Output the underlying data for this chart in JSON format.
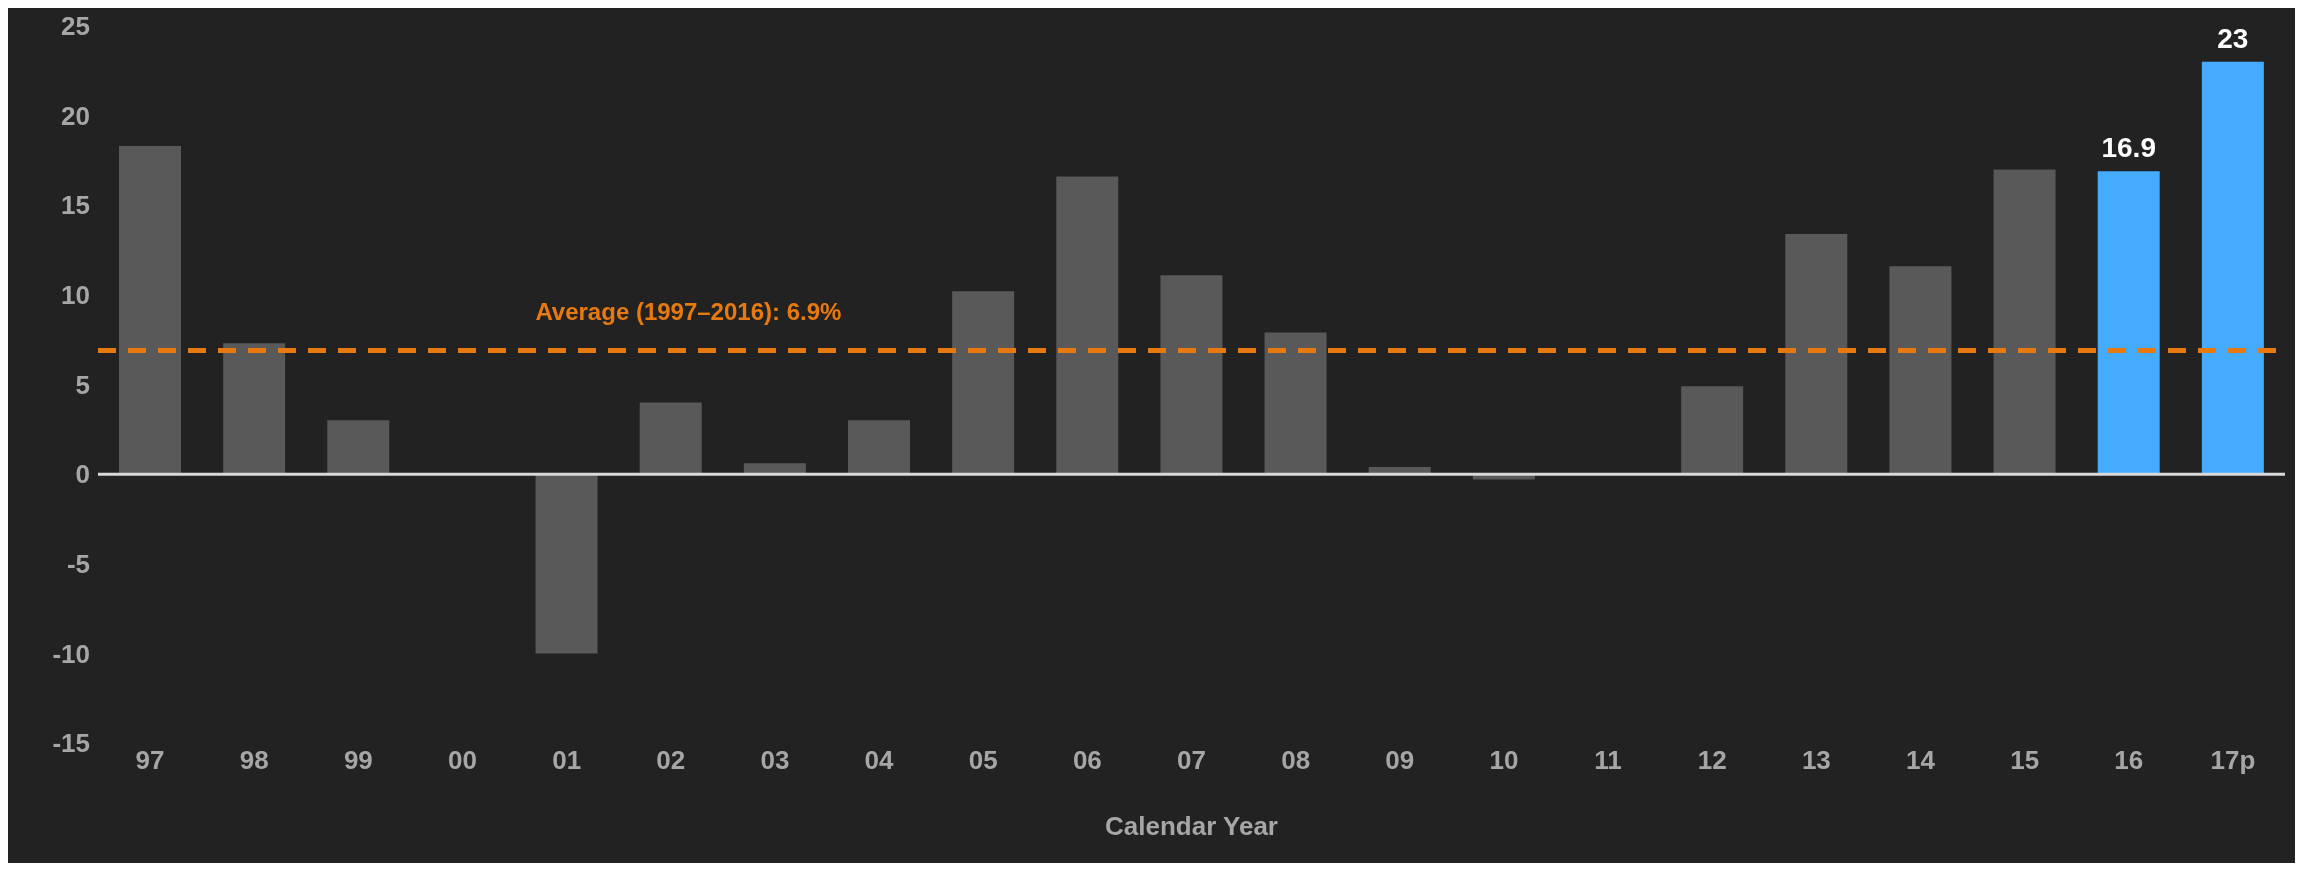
{
  "chart_data": {
    "type": "bar",
    "xlabel": "Calendar Year",
    "categories": [
      "97",
      "98",
      "99",
      "00",
      "01",
      "02",
      "03",
      "04",
      "05",
      "06",
      "07",
      "08",
      "09",
      "10",
      "11",
      "12",
      "13",
      "14",
      "15",
      "16",
      "17p"
    ],
    "values": [
      18.3,
      7.3,
      3.0,
      0,
      -10,
      4.0,
      0.6,
      3.0,
      10.2,
      16.6,
      11.1,
      7.9,
      0.4,
      -0.3,
      0,
      4.9,
      13.4,
      11.6,
      17.0,
      16.9,
      23
    ],
    "colors": [
      "#595959",
      "#595959",
      "#595959",
      "#595959",
      "#595959",
      "#595959",
      "#595959",
      "#595959",
      "#595959",
      "#595959",
      "#595959",
      "#595959",
      "#595959",
      "#595959",
      "#595959",
      "#595959",
      "#595959",
      "#595959",
      "#595959",
      "#45abff",
      "#45abff"
    ],
    "value_labels": [
      null,
      null,
      null,
      null,
      null,
      null,
      null,
      null,
      null,
      null,
      null,
      null,
      null,
      null,
      null,
      null,
      null,
      null,
      null,
      "16.9",
      "23"
    ],
    "ylim": [
      -15,
      25
    ],
    "yticks": [
      -15,
      -10,
      -5,
      0,
      5,
      10,
      15,
      20,
      25
    ],
    "grid": false,
    "legend": false,
    "ref_lines": [
      {
        "axis": "y",
        "value": 0,
        "color": "#d9d9d9",
        "line_style": "solid"
      },
      {
        "axis": "y",
        "value": 6.9,
        "label": "Average (1997–2016): 6.9%",
        "color": "#e8790e",
        "line_style": "dashed"
      }
    ]
  }
}
